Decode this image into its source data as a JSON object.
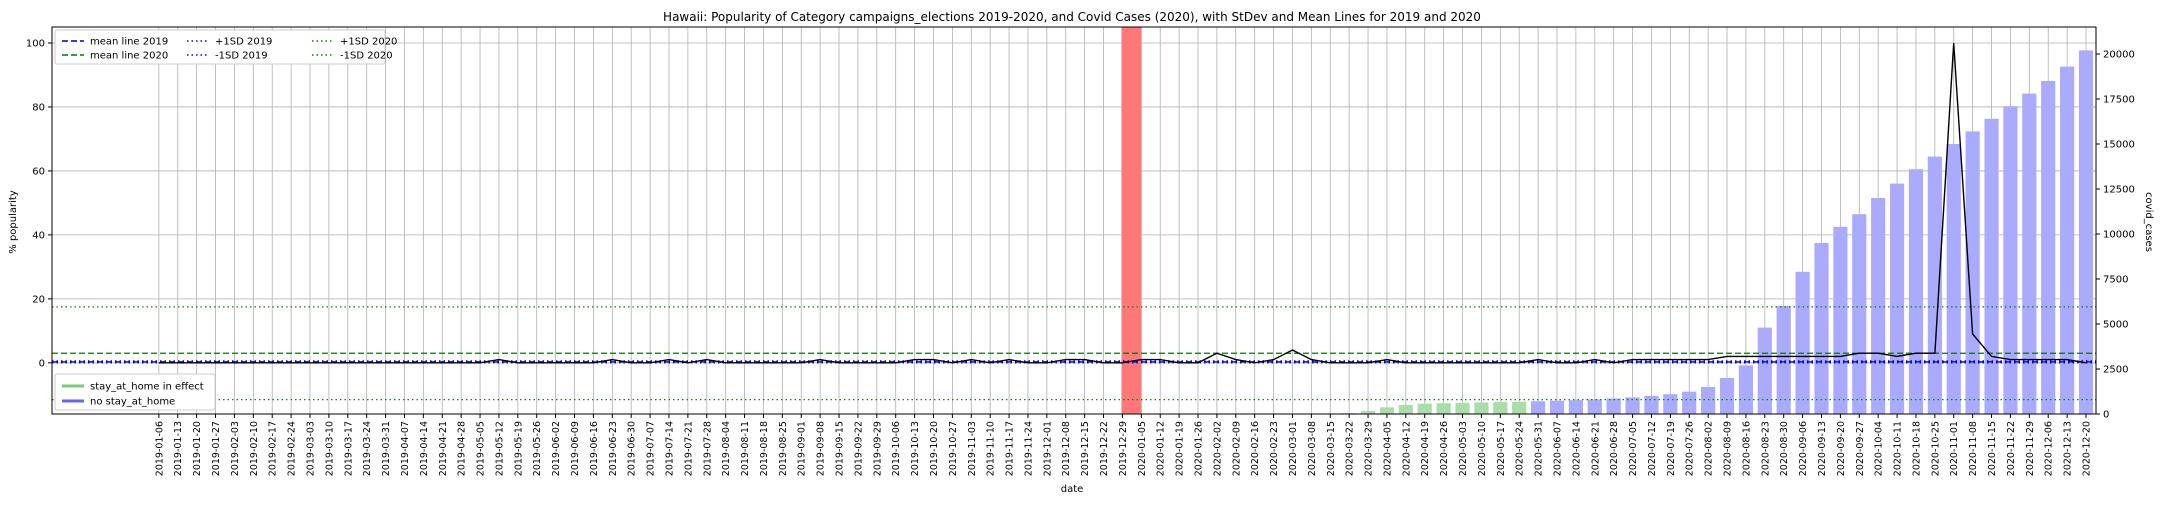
{
  "chart_data": {
    "type": "bar",
    "title": "Hawaii: Popularity of Category campaigns_elections 2019-2020, and Covid Cases (2020), with StDev and Mean Lines for 2019 and 2020",
    "xlabel": "date",
    "ylabel_left": "% popularity",
    "ylabel_right": "covid_cases",
    "ylim_left": [
      -16,
      105
    ],
    "ylim_right": [
      0,
      21500
    ],
    "yticks_left": [
      0,
      20,
      40,
      60,
      80,
      100
    ],
    "yticks_right": [
      0,
      2500,
      5000,
      7500,
      10000,
      12500,
      15000,
      17500,
      20000
    ],
    "grid": true,
    "x": [
      "2019-01-06",
      "2019-01-13",
      "2019-01-20",
      "2019-01-27",
      "2019-02-03",
      "2019-02-10",
      "2019-02-17",
      "2019-02-24",
      "2019-03-03",
      "2019-03-10",
      "2019-03-17",
      "2019-03-24",
      "2019-03-31",
      "2019-04-07",
      "2019-04-14",
      "2019-04-21",
      "2019-04-28",
      "2019-05-05",
      "2019-05-12",
      "2019-05-19",
      "2019-05-26",
      "2019-06-02",
      "2019-06-09",
      "2019-06-16",
      "2019-06-23",
      "2019-06-30",
      "2019-07-07",
      "2019-07-14",
      "2019-07-21",
      "2019-07-28",
      "2019-08-04",
      "2019-08-11",
      "2019-08-18",
      "2019-08-25",
      "2019-09-01",
      "2019-09-08",
      "2019-09-15",
      "2019-09-22",
      "2019-09-29",
      "2019-10-06",
      "2019-10-13",
      "2019-10-20",
      "2019-10-27",
      "2019-11-03",
      "2019-11-10",
      "2019-11-17",
      "2019-11-24",
      "2019-12-01",
      "2019-12-08",
      "2019-12-15",
      "2019-12-22",
      "2019-12-29",
      "2020-01-05",
      "2020-01-12",
      "2020-01-19",
      "2020-01-26",
      "2020-02-02",
      "2020-02-09",
      "2020-02-16",
      "2020-02-23",
      "2020-03-01",
      "2020-03-08",
      "2020-03-15",
      "2020-03-22",
      "2020-03-29",
      "2020-04-05",
      "2020-04-12",
      "2020-04-19",
      "2020-04-26",
      "2020-05-03",
      "2020-05-10",
      "2020-05-17",
      "2020-05-24",
      "2020-05-31",
      "2020-06-07",
      "2020-06-14",
      "2020-06-21",
      "2020-06-28",
      "2020-07-05",
      "2020-07-12",
      "2020-07-19",
      "2020-07-26",
      "2020-08-02",
      "2020-08-09",
      "2020-08-16",
      "2020-08-23",
      "2020-08-30",
      "2020-09-06",
      "2020-09-13",
      "2020-09-20",
      "2020-09-27",
      "2020-10-04",
      "2020-10-11",
      "2020-10-18",
      "2020-10-25",
      "2020-11-01",
      "2020-11-08",
      "2020-11-15",
      "2020-11-22",
      "2020-11-29",
      "2020-12-06",
      "2020-12-13",
      "2020-12-20"
    ],
    "popularity": [
      0,
      0,
      0,
      0,
      0,
      0,
      0,
      0,
      0,
      0,
      0,
      0,
      0,
      0,
      0,
      0,
      0,
      0,
      1,
      0,
      0,
      0,
      0,
      0,
      1,
      0,
      0,
      1,
      0,
      1,
      0,
      0,
      0,
      0,
      0,
      1,
      0,
      0,
      0,
      0,
      1,
      1,
      0,
      1,
      0,
      1,
      0,
      0,
      1,
      1,
      0,
      0,
      1,
      1,
      0,
      0,
      3,
      1,
      0,
      1,
      4,
      1,
      0,
      0,
      0,
      1,
      0,
      0,
      0,
      0,
      0,
      0,
      0,
      1,
      0,
      0,
      1,
      0,
      1,
      1,
      1,
      1,
      1,
      2,
      2,
      2,
      2,
      2,
      2,
      2,
      3,
      3,
      2,
      3,
      3,
      100,
      9,
      2,
      1,
      1,
      1,
      1,
      0
    ],
    "covid_cases": [
      0,
      0,
      0,
      0,
      0,
      0,
      0,
      0,
      0,
      0,
      0,
      0,
      0,
      0,
      0,
      0,
      0,
      0,
      0,
      0,
      0,
      0,
      0,
      0,
      0,
      0,
      0,
      0,
      0,
      0,
      0,
      0,
      0,
      0,
      0,
      0,
      0,
      0,
      0,
      0,
      0,
      0,
      0,
      0,
      0,
      0,
      0,
      0,
      0,
      0,
      0,
      0,
      0,
      0,
      0,
      0,
      0,
      0,
      0,
      0,
      0,
      0,
      0,
      40,
      175,
      370,
      500,
      575,
      600,
      620,
      640,
      660,
      680,
      710,
      740,
      770,
      810,
      860,
      920,
      1000,
      1100,
      1240,
      1500,
      2000,
      2700,
      4800,
      6000,
      7900,
      9500,
      10400,
      11100,
      12000,
      12800,
      13600,
      14300,
      15000,
      15700,
      16400,
      17100,
      17800,
      18500,
      19300,
      20200
    ],
    "stay_at_home_start": "2020-03-29",
    "stay_at_home_end": "2020-05-24",
    "highlight_date": "2020-01-05",
    "mean_line_2019": 0.3,
    "mean_line_2020": 3.0,
    "plus1sd_2019": 0.6,
    "minus1sd_2019": 0.0,
    "plus1sd_2020": 17.5,
    "minus1sd_2020": -11.5,
    "legend_top": [
      {
        "label": "mean line 2019",
        "color": "#0000aa",
        "dash": "6,3"
      },
      {
        "label": "mean line 2020",
        "color": "#007700",
        "dash": "6,3"
      },
      {
        "label": "+1SD 2019",
        "color": "#0000ff",
        "dash": "1.5,3"
      },
      {
        "label": "-1SD 2019",
        "color": "#0000ff",
        "dash": "1.5,3"
      },
      {
        "label": "+1SD 2020",
        "color": "#008800",
        "dash": "1.5,3"
      },
      {
        "label": "-1SD 2020",
        "color": "#008800",
        "dash": "1.5,3"
      }
    ],
    "legend_bottom": [
      {
        "label": "stay_at_home in effect",
        "color": "#77cc77"
      },
      {
        "label": "no stay_at_home",
        "color": "#6666ee"
      }
    ],
    "colors": {
      "bar_no_stay": "#aaaaff",
      "bar_stay": "#aaddaa",
      "highlight": "#ff7777",
      "popularity_line": "#000000",
      "grid": "#b0b0b0"
    }
  }
}
